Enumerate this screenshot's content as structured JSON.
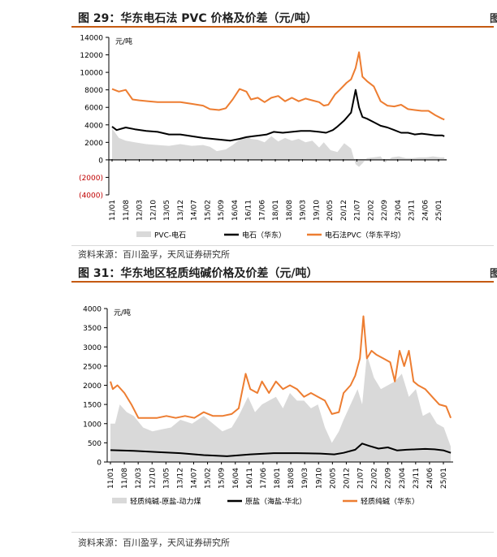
{
  "chart_data": [
    {
      "type": "line",
      "title": "图 29：华东电石法 PVC 价格及价差（元/吨）",
      "ylabel": "元/吨",
      "ylim": [
        -4000,
        14000
      ],
      "yticks": [
        14000,
        12000,
        10000,
        8000,
        6000,
        4000,
        2000,
        0,
        -2000,
        -4000
      ],
      "ytick_labels": [
        "14000",
        "12000",
        "10000",
        "8000",
        "6000",
        "4000",
        "2000",
        "0",
        "(2000)",
        "(4000)"
      ],
      "xlim": [
        2011.0,
        2025.7
      ],
      "x_tick_labels": [
        "11/01",
        "11/08",
        "12/03",
        "12/10",
        "13/05",
        "13/12",
        "14/07",
        "15/02",
        "15/09",
        "16/04",
        "16/11",
        "17/06",
        "18/01",
        "18/08",
        "19/03",
        "19/10",
        "20/05",
        "20/12",
        "21/07",
        "22/02",
        "22/09",
        "23/04",
        "23/11",
        "24/06",
        "25/01"
      ],
      "legend_placement": "bottom",
      "series": [
        {
          "name": "PVC-电石",
          "style": "area",
          "color": "#d9d9d9",
          "x": [
            2011.0,
            2011.3,
            2011.6,
            2012.0,
            2012.5,
            2013.0,
            2013.5,
            2014.0,
            2014.5,
            2015.0,
            2015.3,
            2015.6,
            2016.0,
            2016.3,
            2016.6,
            2016.9,
            2017.1,
            2017.4,
            2017.7,
            2018.0,
            2018.3,
            2018.6,
            2018.9,
            2019.2,
            2019.5,
            2019.8,
            2020.1,
            2020.3,
            2020.6,
            2020.9,
            2021.2,
            2021.5,
            2021.7,
            2021.85,
            2022.0,
            2022.2,
            2022.5,
            2022.8,
            2023.0,
            2023.3,
            2023.6,
            2023.9,
            2024.2,
            2024.5,
            2024.8,
            2025.1,
            2025.4,
            2025.6
          ],
          "values": [
            3600,
            2500,
            2200,
            2000,
            1800,
            1700,
            1600,
            1800,
            1600,
            1700,
            1500,
            1000,
            1200,
            1700,
            2300,
            2700,
            2400,
            2300,
            2000,
            2700,
            2100,
            2500,
            2200,
            2400,
            2000,
            2200,
            1400,
            2000,
            1100,
            900,
            1900,
            1300,
            -500,
            -800,
            -400,
            200,
            300,
            400,
            -300,
            300,
            400,
            200,
            200,
            300,
            300,
            400,
            300,
            300
          ]
        },
        {
          "name": "电石（华东）",
          "style": "line",
          "color": "#000000",
          "x": [
            2011.0,
            2011.2,
            2011.6,
            2012.0,
            2012.5,
            2013.0,
            2013.5,
            2014.0,
            2014.5,
            2015.0,
            2015.4,
            2015.8,
            2016.2,
            2016.6,
            2016.9,
            2017.2,
            2017.5,
            2017.8,
            2018.1,
            2018.5,
            2018.9,
            2019.3,
            2019.7,
            2020.1,
            2020.4,
            2020.7,
            2020.9,
            2021.2,
            2021.5,
            2021.7,
            2021.85,
            2022.0,
            2022.2,
            2022.5,
            2022.8,
            2023.1,
            2023.4,
            2023.7,
            2024.0,
            2024.3,
            2024.6,
            2024.9,
            2025.2,
            2025.5,
            2025.6
          ],
          "values": [
            3800,
            3400,
            3700,
            3500,
            3300,
            3200,
            2900,
            2900,
            2700,
            2500,
            2400,
            2300,
            2200,
            2400,
            2600,
            2700,
            2800,
            2900,
            3200,
            3100,
            3200,
            3300,
            3300,
            3200,
            3100,
            3400,
            3800,
            4500,
            5400,
            8000,
            6000,
            4900,
            4700,
            4300,
            3900,
            3700,
            3400,
            3100,
            3100,
            2900,
            3000,
            2900,
            2800,
            2800,
            2700
          ]
        },
        {
          "name": "电石法PVC（华东平均）",
          "style": "line",
          "color": "#ed7d31",
          "x": [
            2011.0,
            2011.3,
            2011.6,
            2011.9,
            2012.2,
            2012.6,
            2013.0,
            2013.5,
            2014.0,
            2014.5,
            2015.0,
            2015.3,
            2015.7,
            2016.0,
            2016.3,
            2016.6,
            2016.9,
            2017.1,
            2017.4,
            2017.7,
            2018.0,
            2018.3,
            2018.6,
            2018.9,
            2019.2,
            2019.5,
            2019.8,
            2020.1,
            2020.3,
            2020.5,
            2020.8,
            2021.0,
            2021.3,
            2021.5,
            2021.7,
            2021.85,
            2022.0,
            2022.2,
            2022.5,
            2022.8,
            2023.1,
            2023.4,
            2023.7,
            2024.0,
            2024.3,
            2024.6,
            2024.9,
            2025.2,
            2025.5,
            2025.6
          ],
          "values": [
            8100,
            7800,
            8000,
            6900,
            6800,
            6700,
            6600,
            6600,
            6600,
            6400,
            6200,
            5800,
            5700,
            5900,
            6900,
            8100,
            7800,
            6900,
            7100,
            6600,
            7100,
            7300,
            6700,
            7100,
            6700,
            7000,
            6800,
            6600,
            6200,
            6300,
            7500,
            8000,
            8800,
            9200,
            10500,
            12300,
            9500,
            9000,
            8400,
            6700,
            6200,
            6100,
            6300,
            5800,
            5700,
            5600,
            5600,
            5100,
            4700,
            4600
          ]
        }
      ],
      "source": "资料来源：百川盈孚，天风证券研究所"
    },
    {
      "type": "line",
      "title": "图 31：华东地区轻质纯碱价格及价差（元/吨）",
      "ylabel": "元/吨",
      "ylim": [
        0,
        4000
      ],
      "yticks": [
        4000,
        3500,
        3000,
        2500,
        2000,
        1500,
        1000,
        500,
        0
      ],
      "ytick_labels": [
        "4000",
        "3500",
        "3000",
        "2500",
        "2000",
        "1500",
        "1000",
        "500",
        "0"
      ],
      "xlim": [
        2011.0,
        2025.7
      ],
      "x_tick_labels": [
        "11/01",
        "11/08",
        "12/03",
        "12/10",
        "13/05",
        "13/12",
        "14/07",
        "15/02",
        "15/09",
        "16/04",
        "16/11",
        "17/06",
        "18/01",
        "18/08",
        "19/03",
        "19/10",
        "20/05",
        "20/12",
        "21/07",
        "22/02",
        "22/09",
        "23/04",
        "23/11",
        "24/06",
        "25/01"
      ],
      "legend_placement": "bottom",
      "series": [
        {
          "name": "轻质纯碱-原盐-动力煤",
          "style": "area",
          "color": "#d9d9d9",
          "x": [
            2011.0,
            2011.2,
            2011.4,
            2011.7,
            2012.0,
            2012.4,
            2012.8,
            2013.2,
            2013.6,
            2014.0,
            2014.5,
            2015.0,
            2015.4,
            2015.8,
            2016.2,
            2016.5,
            2016.9,
            2017.2,
            2017.5,
            2017.8,
            2018.1,
            2018.4,
            2018.7,
            2019.0,
            2019.3,
            2019.6,
            2019.9,
            2020.2,
            2020.5,
            2020.8,
            2021.0,
            2021.3,
            2021.6,
            2021.8,
            2022.0,
            2022.3,
            2022.6,
            2022.9,
            2023.2,
            2023.5,
            2023.8,
            2024.1,
            2024.4,
            2024.7,
            2025.0,
            2025.3,
            2025.6
          ],
          "values": [
            1000,
            1000,
            1500,
            1300,
            1200,
            900,
            800,
            850,
            900,
            1100,
            1000,
            1200,
            1000,
            800,
            900,
            1200,
            1700,
            1300,
            1500,
            1600,
            1700,
            1400,
            1800,
            1600,
            1600,
            1400,
            1500,
            900,
            500,
            800,
            1100,
            1500,
            1900,
            1500,
            2800,
            2200,
            1900,
            2000,
            2100,
            2300,
            1700,
            1900,
            1200,
            1300,
            1000,
            900,
            400
          ]
        },
        {
          "name": "原盐（海盐-华北）",
          "style": "line",
          "color": "#000000",
          "x": [
            2011.0,
            2012.0,
            2013.0,
            2014.0,
            2015.0,
            2016.0,
            2017.0,
            2018.0,
            2019.0,
            2020.0,
            2020.6,
            2021.0,
            2021.5,
            2021.8,
            2022.1,
            2022.5,
            2022.9,
            2023.3,
            2023.7,
            2024.1,
            2024.5,
            2024.9,
            2025.3,
            2025.6
          ],
          "values": [
            310,
            290,
            260,
            230,
            180,
            150,
            200,
            230,
            230,
            220,
            200,
            240,
            320,
            480,
            420,
            350,
            380,
            300,
            320,
            330,
            340,
            330,
            300,
            240
          ]
        },
        {
          "name": "轻质纯碱（华东）",
          "style": "line",
          "color": "#ed7d31",
          "x": [
            2011.0,
            2011.1,
            2011.3,
            2011.6,
            2011.9,
            2012.2,
            2012.6,
            2013.0,
            2013.4,
            2013.8,
            2014.2,
            2014.6,
            2015.0,
            2015.4,
            2015.8,
            2016.2,
            2016.5,
            2016.8,
            2017.0,
            2017.3,
            2017.5,
            2017.8,
            2018.1,
            2018.4,
            2018.7,
            2019.0,
            2019.3,
            2019.6,
            2019.9,
            2020.2,
            2020.5,
            2020.8,
            2021.0,
            2021.3,
            2021.5,
            2021.7,
            2021.85,
            2022.0,
            2022.2,
            2022.4,
            2022.7,
            2023.0,
            2023.2,
            2023.4,
            2023.6,
            2023.8,
            2024.0,
            2024.2,
            2024.5,
            2024.8,
            2025.1,
            2025.4,
            2025.6
          ],
          "values": [
            2100,
            1900,
            2000,
            1800,
            1500,
            1150,
            1150,
            1150,
            1200,
            1150,
            1200,
            1150,
            1300,
            1200,
            1200,
            1250,
            1400,
            2300,
            1900,
            1800,
            2100,
            1800,
            2100,
            1900,
            2000,
            1900,
            1700,
            1800,
            1700,
            1600,
            1250,
            1300,
            1800,
            2000,
            2250,
            2700,
            3800,
            2700,
            2900,
            2800,
            2700,
            2600,
            2100,
            2900,
            2500,
            2900,
            2100,
            2000,
            1900,
            1700,
            1500,
            1450,
            1150
          ]
        }
      ],
      "source": "资料来源：百川盈孚，天风证券研究所"
    }
  ],
  "side_marks": [
    "图",
    "图"
  ]
}
